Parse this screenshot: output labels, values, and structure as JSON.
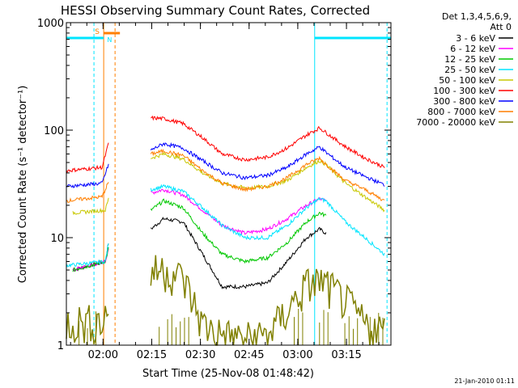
{
  "chart_data": {
    "type": "line",
    "title": "HESSI Observing Summary Count Rates, Corrected",
    "xlabel": "Start Time (25-Nov-08 01:48:42)",
    "ylabel": "Corrected Count Rate (s⁻¹ detector⁻¹)",
    "footer": "21-Jan-2010 01:11",
    "y_scale": "log",
    "ylim": [
      1,
      1000
    ],
    "xlim_minutes_from_start": [
      0,
      100
    ],
    "x_ticks": [
      {
        "label": "02:00",
        "t": 11.3
      },
      {
        "label": "02:15",
        "t": 26.3
      },
      {
        "label": "02:30",
        "t": 41.3
      },
      {
        "label": "02:45",
        "t": 56.3
      },
      {
        "label": "03:00",
        "t": 71.3
      },
      {
        "label": "03:15",
        "t": 86.3
      }
    ],
    "y_ticks": [
      {
        "label": "1",
        "value": 1
      },
      {
        "label": "10",
        "value": 10
      },
      {
        "label": "100",
        "value": 100
      },
      {
        "label": "1000",
        "value": 1000
      }
    ],
    "legend": {
      "header": [
        "Det 1,3,4,5,6,9,",
        "Att 0"
      ],
      "placement": "right"
    },
    "annotations": {
      "saa_label": "S",
      "night_label": "N",
      "saa_color": "#ff7f00",
      "night_color": "#00e5ff"
    },
    "series": [
      {
        "name": "3 - 6 keV",
        "color": "#000000",
        "pre": [
          [
            2,
            5
          ],
          [
            12,
            6
          ],
          [
            13,
            9
          ]
        ],
        "during": [
          [
            26,
            12
          ],
          [
            30,
            15
          ],
          [
            36,
            14
          ],
          [
            42,
            7
          ],
          [
            48,
            3.5
          ],
          [
            55,
            3.5
          ],
          [
            62,
            3.8
          ],
          [
            68,
            6
          ],
          [
            74,
            10
          ],
          [
            78,
            12
          ],
          [
            80,
            11
          ]
        ]
      },
      {
        "name": "6 - 12 keV",
        "color": "#ff00ff",
        "pre": [
          [
            2,
            5
          ],
          [
            12,
            6
          ],
          [
            13,
            8
          ]
        ],
        "during": [
          [
            26,
            26
          ],
          [
            30,
            28
          ],
          [
            36,
            25
          ],
          [
            42,
            18
          ],
          [
            48,
            13
          ],
          [
            55,
            11
          ],
          [
            62,
            12
          ],
          [
            68,
            15
          ],
          [
            74,
            20
          ],
          [
            78,
            23
          ],
          [
            80,
            22
          ]
        ]
      },
      {
        "name": "12 - 25 keV",
        "color": "#00c800",
        "pre": [
          [
            2,
            5
          ],
          [
            12,
            6
          ],
          [
            13,
            8
          ]
        ],
        "during": [
          [
            26,
            18
          ],
          [
            30,
            22
          ],
          [
            36,
            19
          ],
          [
            42,
            11
          ],
          [
            48,
            7
          ],
          [
            55,
            6
          ],
          [
            62,
            6.5
          ],
          [
            68,
            9
          ],
          [
            74,
            14
          ],
          [
            78,
            17
          ],
          [
            80,
            16
          ]
        ]
      },
      {
        "name": "25 - 50 keV",
        "color": "#00e5ff",
        "pre": [
          [
            0,
            5.5
          ],
          [
            12,
            6
          ],
          [
            13,
            9
          ]
        ],
        "during": [
          [
            26,
            28
          ],
          [
            30,
            30
          ],
          [
            36,
            27
          ],
          [
            42,
            19
          ],
          [
            48,
            13
          ],
          [
            55,
            10
          ],
          [
            62,
            10
          ],
          [
            68,
            13
          ],
          [
            74,
            19
          ],
          [
            78,
            23
          ],
          [
            80,
            22
          ],
          [
            86,
            14
          ],
          [
            92,
            10
          ],
          [
            98,
            7
          ]
        ]
      },
      {
        "name": "50 - 100 keV",
        "color": "#c8c800",
        "pre": [
          [
            2,
            17
          ],
          [
            12,
            18
          ],
          [
            13,
            23
          ]
        ],
        "during": [
          [
            26,
            55
          ],
          [
            30,
            60
          ],
          [
            36,
            54
          ],
          [
            42,
            40
          ],
          [
            48,
            32
          ],
          [
            55,
            29
          ],
          [
            62,
            30
          ],
          [
            68,
            34
          ],
          [
            74,
            45
          ],
          [
            78,
            52
          ],
          [
            80,
            48
          ],
          [
            86,
            32
          ],
          [
            92,
            24
          ],
          [
            98,
            18
          ]
        ]
      },
      {
        "name": "100 - 300 keV",
        "color": "#ff0000",
        "pre": [
          [
            0,
            42
          ],
          [
            11,
            45
          ],
          [
            13,
            75
          ]
        ],
        "during": [
          [
            26,
            130
          ],
          [
            30,
            128
          ],
          [
            36,
            115
          ],
          [
            42,
            85
          ],
          [
            48,
            60
          ],
          [
            55,
            53
          ],
          [
            62,
            56
          ],
          [
            68,
            68
          ],
          [
            74,
            90
          ],
          [
            78,
            105
          ],
          [
            80,
            95
          ],
          [
            86,
            70
          ],
          [
            92,
            55
          ],
          [
            98,
            45
          ]
        ]
      },
      {
        "name": "300 - 800 keV",
        "color": "#0000ff",
        "pre": [
          [
            0,
            30
          ],
          [
            11,
            32
          ],
          [
            13,
            48
          ]
        ],
        "during": [
          [
            26,
            65
          ],
          [
            30,
            75
          ],
          [
            36,
            68
          ],
          [
            42,
            52
          ],
          [
            48,
            40
          ],
          [
            55,
            36
          ],
          [
            62,
            38
          ],
          [
            68,
            45
          ],
          [
            74,
            60
          ],
          [
            78,
            70
          ],
          [
            80,
            62
          ],
          [
            86,
            45
          ],
          [
            92,
            37
          ],
          [
            98,
            31
          ]
        ]
      },
      {
        "name": "800 - 7000 keV",
        "color": "#ff7f00",
        "pre": [
          [
            0,
            22
          ],
          [
            11,
            24
          ],
          [
            13,
            33
          ]
        ],
        "during": [
          [
            26,
            60
          ],
          [
            30,
            64
          ],
          [
            36,
            58
          ],
          [
            42,
            42
          ],
          [
            48,
            32
          ],
          [
            55,
            28
          ],
          [
            62,
            30
          ],
          [
            68,
            36
          ],
          [
            74,
            48
          ],
          [
            78,
            55
          ],
          [
            80,
            48
          ],
          [
            86,
            34
          ],
          [
            92,
            28
          ],
          [
            98,
            22
          ]
        ]
      },
      {
        "name": "7000 - 20000 keV",
        "color": "#808000",
        "pre": [
          [
            0,
            1.6
          ],
          [
            11,
            1.6
          ],
          [
            13,
            2
          ]
        ],
        "during": [
          [
            26,
            4.5
          ],
          [
            30,
            5
          ],
          [
            36,
            4
          ],
          [
            42,
            1.5
          ],
          [
            48,
            1.2
          ],
          [
            55,
            1.1
          ],
          [
            62,
            1.2
          ],
          [
            68,
            2
          ],
          [
            74,
            3.5
          ],
          [
            78,
            3.8
          ],
          [
            80,
            3.5
          ],
          [
            86,
            2.5
          ],
          [
            92,
            1.5
          ],
          [
            98,
            1.3
          ]
        ]
      }
    ]
  }
}
